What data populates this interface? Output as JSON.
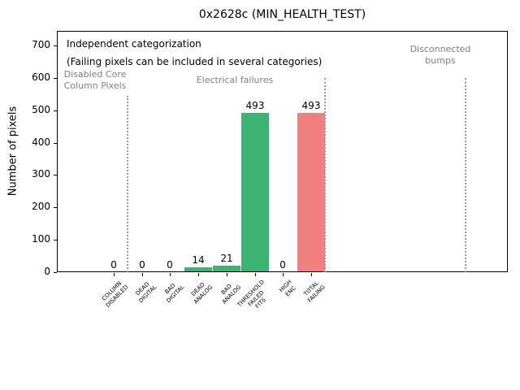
{
  "chart_data": {
    "type": "bar",
    "title": "0x2628c (MIN_HEALTH_TEST)",
    "ylabel": "Number of pixels",
    "xlabel": "",
    "ylim": [
      0,
      700
    ],
    "yticks": [
      0,
      100,
      200,
      300,
      400,
      500,
      600,
      700
    ],
    "grid": false,
    "legend": "none",
    "categories": [
      "COLUMN DISABLED",
      "DEAD DIGITAL",
      "BAD DIGITAL",
      "DEAD ANALOG",
      "BAD ANALOG",
      "THRESHOLD FAILED FITS",
      "HIGH ENC",
      "TOTAL FAILING"
    ],
    "category_label_lines": [
      [
        "COLUMN",
        "DISABLED"
      ],
      [
        "DEAD",
        "DIGITAL"
      ],
      [
        "BAD",
        "DIGITAL"
      ],
      [
        "DEAD",
        "ANALOG"
      ],
      [
        "BAD",
        "ANALOG"
      ],
      [
        "THRESHOLD",
        "FAILED",
        "FITS"
      ],
      [
        "HIGH",
        "ENC"
      ],
      [
        "TOTAL",
        "FAILING"
      ]
    ],
    "values": [
      0,
      0,
      0,
      14,
      21,
      493,
      0,
      493
    ],
    "value_labels": [
      "0",
      "0",
      "0",
      "14",
      "21",
      "493",
      "0",
      "493"
    ],
    "bar_colors": [
      "#3cb371",
      "#3cb371",
      "#3cb371",
      "#3cb371",
      "#3cb371",
      "#3cb371",
      "#3cb371",
      "#f08080"
    ],
    "annotations": {
      "note_line1": "Independent categorization",
      "note_line2": "(Failing pixels can be included in several categories)"
    },
    "sections": [
      {
        "name": "disabled-core-column-pixels",
        "lines": [
          "Disabled Core",
          "Column Pixels"
        ]
      },
      {
        "name": "electrical-failures",
        "lines": [
          "Electrical failures"
        ]
      },
      {
        "name": "disconnected-bumps",
        "lines": [
          "Disconnected",
          "bumps"
        ]
      }
    ]
  },
  "colors": {
    "bar_green": "#3cb371",
    "bar_red": "#f08080",
    "section_label_text": "#808080",
    "divider_dotted": "#999999",
    "axis_text": "#000000",
    "background": "#ffffff"
  }
}
